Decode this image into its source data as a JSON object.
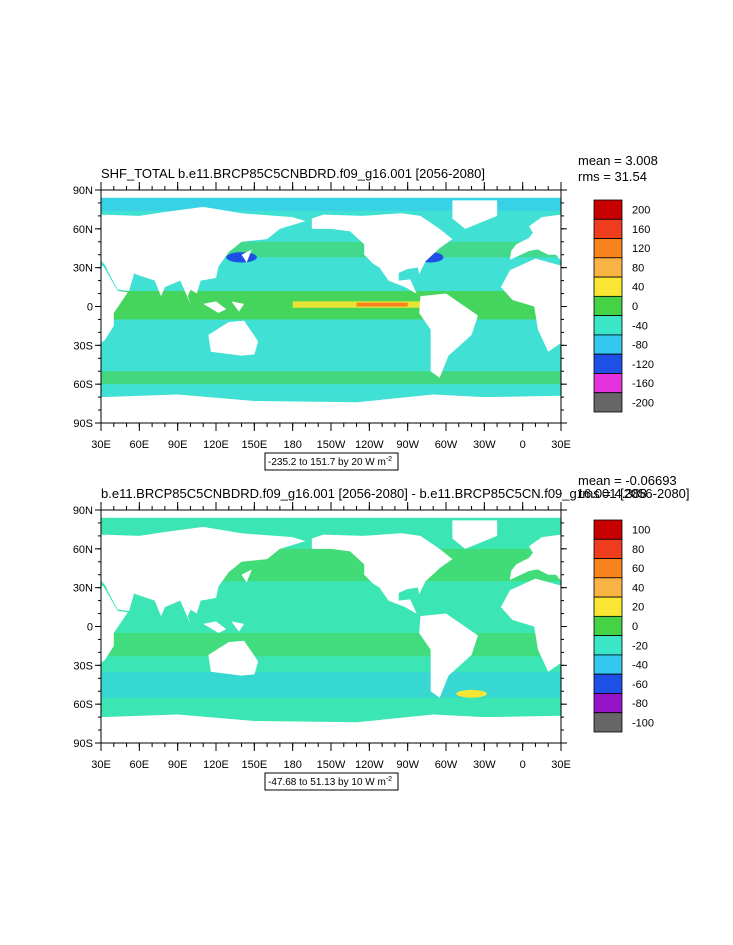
{
  "panels": [
    {
      "title": "SHF_TOTAL b.e11.BRCP85C5CNBDRD.f09_g16.001 [2056-2080]",
      "mean": "mean = 3.008",
      "rms": "rms = 31.54",
      "lat_labels": [
        "90N",
        "60N",
        "30N",
        "0",
        "30S",
        "60S",
        "90S"
      ],
      "lon_labels": [
        "30E",
        "60E",
        "90E",
        "120E",
        "150E",
        "180",
        "150W",
        "120W",
        "90W",
        "60W",
        "30W",
        "0",
        "30E"
      ],
      "colorbar": {
        "labels": [
          200,
          160,
          120,
          80,
          40,
          0,
          -40,
          -80,
          -120,
          -160,
          -200
        ],
        "colors": [
          "#c80000",
          "#f03c1e",
          "#f8821e",
          "#fab446",
          "#fae632",
          "#46d246",
          "#3ce6c8",
          "#32c8f0",
          "#1e50e6",
          "#e632dc",
          "#666666"
        ]
      },
      "range_note": {
        "text": "-235.2 to 151.7 by 20  W m",
        "superscript": "-2"
      }
    },
    {
      "title": "b.e11.BRCP85C5CNBDRD.f09_g16.001 [2056-2080] - b.e11.BRCP85C5CN.f09_g16.001 [2056-2080]",
      "mean": "mean = -0.06693",
      "rms": "rms = 4.388",
      "lat_labels": [
        "90N",
        "60N",
        "30N",
        "0",
        "30S",
        "60S",
        "90S"
      ],
      "lon_labels": [
        "30E",
        "60E",
        "90E",
        "120E",
        "150E",
        "180",
        "150W",
        "120W",
        "90W",
        "60W",
        "30W",
        "0",
        "30E"
      ],
      "colorbar": {
        "labels": [
          100,
          80,
          60,
          40,
          20,
          0,
          -20,
          -40,
          -60,
          -80,
          -100
        ],
        "colors": [
          "#c80000",
          "#f03c1e",
          "#f8821e",
          "#fab446",
          "#fae632",
          "#46d246",
          "#3ce6c8",
          "#32c8f0",
          "#1e50e6",
          "#9614c8",
          "#666666"
        ]
      },
      "range_note": {
        "text": "-47.68 to 51.13 by 10  W m",
        "superscript": "-2"
      }
    }
  ]
}
